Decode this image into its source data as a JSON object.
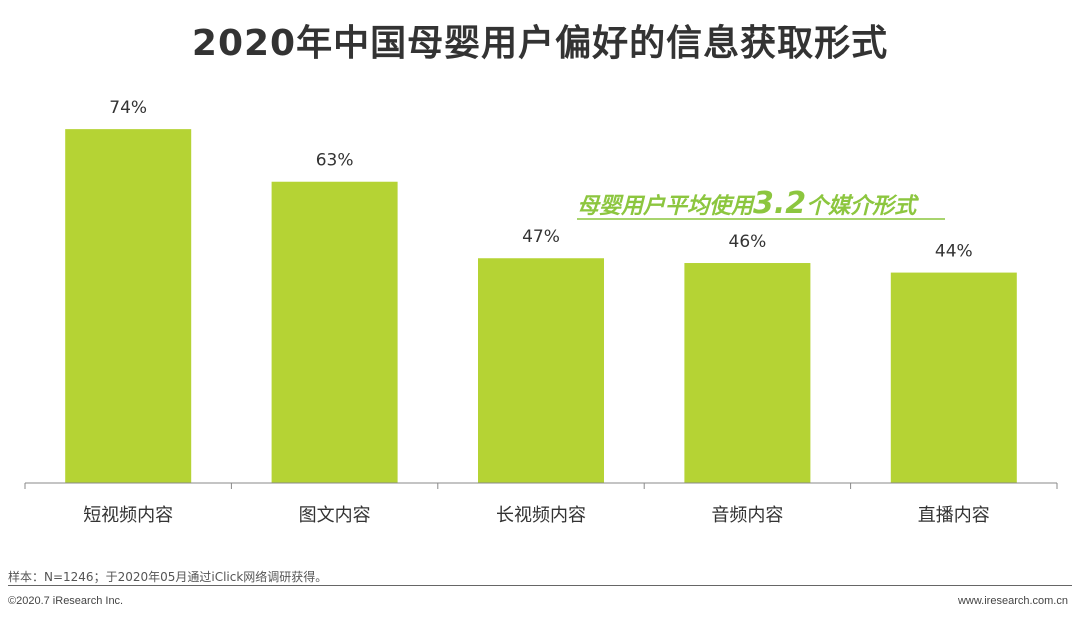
{
  "title": "2020年中国母婴用户偏好的信息获取形式",
  "callout": {
    "prefix": "母婴用户平均使用",
    "number": "3.2",
    "suffix": "个媒介形式"
  },
  "colors": {
    "bar": "#b5d334",
    "callout": "#8cc63f",
    "axis": "#888888"
  },
  "chart_data": {
    "type": "bar",
    "categories": [
      "短视频内容",
      "图文内容",
      "长视频内容",
      "音频内容",
      "直播内容"
    ],
    "values": [
      74,
      63,
      47,
      46,
      44
    ],
    "value_labels": [
      "74%",
      "63%",
      "47%",
      "46%",
      "44%"
    ],
    "ylim": [
      0,
      78
    ],
    "grid": false,
    "legend": "none"
  },
  "footer": {
    "note": "样本：N=1246；于2020年05月通过iClick网络调研获得。",
    "copyright": "©2020.7 iResearch Inc.",
    "website": "www.iresearch.com.cn"
  }
}
